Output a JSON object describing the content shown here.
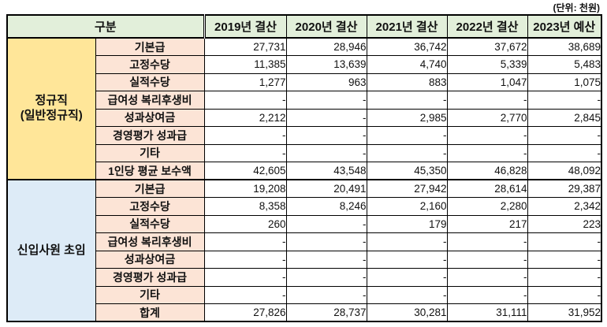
{
  "unit_label": "(단위: 천원)",
  "table": {
    "header": {
      "category": "구분",
      "years": [
        "2019년 결산",
        "2020년 결산",
        "2021년 결산",
        "2022년 결산",
        "2023년 예산"
      ]
    },
    "groups": [
      {
        "label": "정규직 (일반정규직)",
        "label_lines": [
          "정규직",
          "(일반정규직)"
        ],
        "rows": [
          {
            "label": "기본급",
            "values": [
              "27,731",
              "28,946",
              "36,742",
              "37,672",
              "38,689"
            ]
          },
          {
            "label": "고정수당",
            "values": [
              "11,385",
              "13,639",
              "4,740",
              "5,339",
              "5,483"
            ]
          },
          {
            "label": "실적수당",
            "values": [
              "1,277",
              "963",
              "883",
              "1,047",
              "1,075"
            ]
          },
          {
            "label": "급여성 복리후생비",
            "values": [
              "-",
              "-",
              "-",
              "-",
              "-"
            ]
          },
          {
            "label": "성과상여금",
            "values": [
              "2,212",
              "-",
              "2,985",
              "2,770",
              "2,845"
            ]
          },
          {
            "label": "경영평가 성과급",
            "values": [
              "-",
              "-",
              "-",
              "-",
              "-"
            ]
          },
          {
            "label": "기타",
            "values": [
              "-",
              "-",
              "-",
              "-",
              "-"
            ]
          },
          {
            "label": "1인당 평균 보수액",
            "values": [
              "42,605",
              "43,548",
              "45,350",
              "46,828",
              "48,092"
            ]
          }
        ]
      },
      {
        "label": "신입사원 초임",
        "label_lines": [
          "신입사원 초임"
        ],
        "rows": [
          {
            "label": "기본급",
            "values": [
              "19,208",
              "20,491",
              "27,942",
              "28,614",
              "29,387"
            ]
          },
          {
            "label": "고정수당",
            "values": [
              "8,358",
              "8,246",
              "2,160",
              "2,280",
              "2,342"
            ]
          },
          {
            "label": "실적수당",
            "values": [
              "260",
              "-",
              "179",
              "217",
              "223"
            ]
          },
          {
            "label": "급여성 복리후생비",
            "values": [
              "-",
              "-",
              "-",
              "-",
              "-"
            ]
          },
          {
            "label": "성과상여금",
            "values": [
              "-",
              "-",
              "-",
              "-",
              "-"
            ]
          },
          {
            "label": "경영평가 성과급",
            "values": [
              "-",
              "-",
              "-",
              "-",
              "-"
            ]
          },
          {
            "label": "기타",
            "values": [
              "-",
              "-",
              "-",
              "-",
              "-"
            ]
          },
          {
            "label": "합계",
            "values": [
              "27,826",
              "28,737",
              "30,281",
              "31,111",
              "31,952"
            ]
          }
        ]
      }
    ]
  },
  "colors": {
    "header_bg": "#E2EFDA",
    "group1_bg": "#FFE699",
    "group2_bg": "#DDEBF7",
    "row_label_bg": "#FCE4D6",
    "border": "#000000"
  }
}
